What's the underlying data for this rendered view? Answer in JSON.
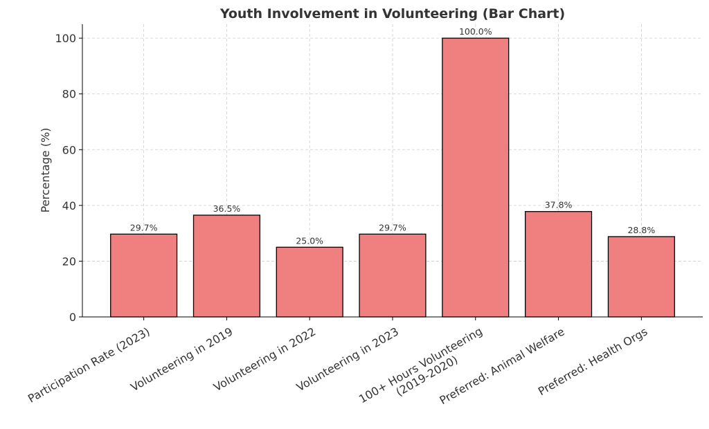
{
  "chart_data": {
    "type": "bar",
    "title": "Youth Involvement in Volunteering (Bar Chart)",
    "xlabel": "",
    "ylabel": "Percentage (%)",
    "categories": [
      "Participation Rate (2023)",
      "Volunteering in 2019",
      "Volunteering in 2022",
      "Volunteering in 2023",
      "100+ Hours Volunteering\n(2019-2020)",
      "Preferred: Animal Welfare",
      "Preferred: Health Orgs"
    ],
    "values": [
      29.7,
      36.5,
      25.0,
      29.7,
      100.0,
      37.8,
      28.8
    ],
    "data_labels": [
      "29.7%",
      "36.5%",
      "25.0%",
      "29.7%",
      "100.0%",
      "37.8%",
      "28.8%"
    ],
    "ylim": [
      0,
      105
    ],
    "yticks": [
      0,
      20,
      40,
      60,
      80,
      100
    ],
    "grid": true,
    "bar_color": "#F08080",
    "edge_color": "#000000"
  }
}
